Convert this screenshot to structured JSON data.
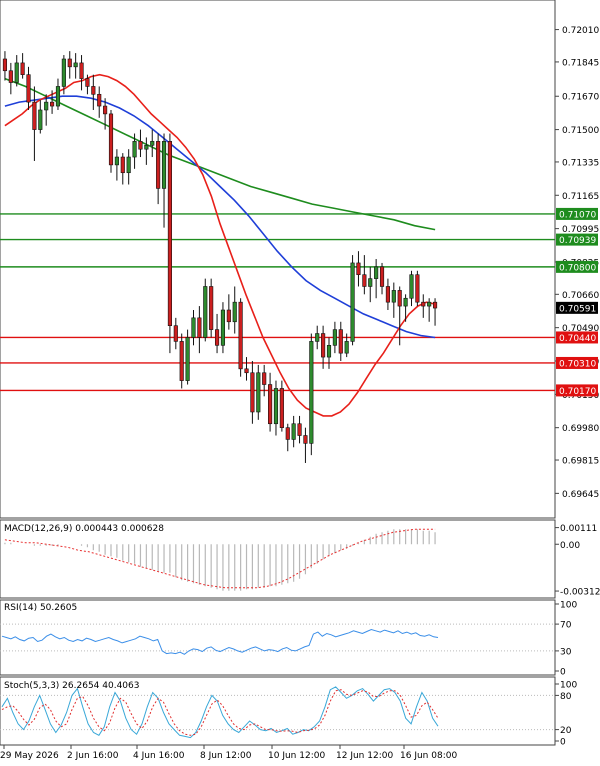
{
  "chart_data": {
    "type": "candlestick",
    "price_panel": {
      "y_ticks": [
        "0.72010",
        "0.71845",
        "0.71670",
        "0.71500",
        "0.71335",
        "0.71165",
        "0.70995",
        "0.70825",
        "0.70660",
        "0.70490",
        "0.70320",
        "0.70150",
        "0.69980",
        "0.69815",
        "0.69645"
      ],
      "range": [
        0.6955,
        0.7212
      ],
      "resistance_levels": [
        0.708,
        0.70939,
        0.7107
      ],
      "support_levels": [
        0.7044,
        0.7031,
        0.7017
      ],
      "resistance_labels": [
        "0.70800",
        "0.70939",
        "0.71070"
      ],
      "support_labels": [
        "0.70440",
        "0.70310",
        "0.70170"
      ],
      "current_price": 0.70591,
      "current_price_label": "0.70591",
      "candles": [
        {
          "o": 0.7186,
          "h": 0.719,
          "l": 0.7175,
          "c": 0.718
        },
        {
          "o": 0.718,
          "h": 0.7184,
          "l": 0.7168,
          "c": 0.7174
        },
        {
          "o": 0.7174,
          "h": 0.7188,
          "l": 0.7172,
          "c": 0.7184
        },
        {
          "o": 0.7184,
          "h": 0.7189,
          "l": 0.7176,
          "c": 0.7178
        },
        {
          "o": 0.7178,
          "h": 0.7182,
          "l": 0.716,
          "c": 0.7164
        },
        {
          "o": 0.7164,
          "h": 0.7172,
          "l": 0.7134,
          "c": 0.715
        },
        {
          "o": 0.715,
          "h": 0.7165,
          "l": 0.7148,
          "c": 0.716
        },
        {
          "o": 0.716,
          "h": 0.7168,
          "l": 0.7152,
          "c": 0.7164
        },
        {
          "o": 0.7164,
          "h": 0.717,
          "l": 0.7158,
          "c": 0.7162
        },
        {
          "o": 0.7162,
          "h": 0.7176,
          "l": 0.716,
          "c": 0.7172
        },
        {
          "o": 0.7172,
          "h": 0.7188,
          "l": 0.7168,
          "c": 0.7186
        },
        {
          "o": 0.7186,
          "h": 0.719,
          "l": 0.7176,
          "c": 0.7182
        },
        {
          "o": 0.7182,
          "h": 0.7189,
          "l": 0.7176,
          "c": 0.7184
        },
        {
          "o": 0.7184,
          "h": 0.7188,
          "l": 0.717,
          "c": 0.7176
        },
        {
          "o": 0.7176,
          "h": 0.7178,
          "l": 0.7168,
          "c": 0.7172
        },
        {
          "o": 0.7172,
          "h": 0.7178,
          "l": 0.716,
          "c": 0.7168
        },
        {
          "o": 0.7168,
          "h": 0.7172,
          "l": 0.7156,
          "c": 0.7162
        },
        {
          "o": 0.7162,
          "h": 0.7166,
          "l": 0.715,
          "c": 0.7158
        },
        {
          "o": 0.7158,
          "h": 0.716,
          "l": 0.7128,
          "c": 0.7132
        },
        {
          "o": 0.7132,
          "h": 0.714,
          "l": 0.7124,
          "c": 0.7136
        },
        {
          "o": 0.7136,
          "h": 0.7138,
          "l": 0.7122,
          "c": 0.7128
        },
        {
          "o": 0.7128,
          "h": 0.714,
          "l": 0.7122,
          "c": 0.7136
        },
        {
          "o": 0.7136,
          "h": 0.7148,
          "l": 0.713,
          "c": 0.7144
        },
        {
          "o": 0.7144,
          "h": 0.715,
          "l": 0.7136,
          "c": 0.714
        },
        {
          "o": 0.714,
          "h": 0.7146,
          "l": 0.7132,
          "c": 0.7142
        },
        {
          "o": 0.7142,
          "h": 0.715,
          "l": 0.7136,
          "c": 0.7144
        },
        {
          "o": 0.7144,
          "h": 0.7148,
          "l": 0.7112,
          "c": 0.712
        },
        {
          "o": 0.712,
          "h": 0.7148,
          "l": 0.71,
          "c": 0.7144
        },
        {
          "o": 0.7144,
          "h": 0.7148,
          "l": 0.7036,
          "c": 0.705
        },
        {
          "o": 0.705,
          "h": 0.7054,
          "l": 0.7038,
          "c": 0.7042
        },
        {
          "o": 0.7042,
          "h": 0.7046,
          "l": 0.7018,
          "c": 0.7022
        },
        {
          "o": 0.7022,
          "h": 0.7048,
          "l": 0.702,
          "c": 0.7044
        },
        {
          "o": 0.7044,
          "h": 0.7058,
          "l": 0.704,
          "c": 0.7054
        },
        {
          "o": 0.7054,
          "h": 0.706,
          "l": 0.7036,
          "c": 0.7044
        },
        {
          "o": 0.7044,
          "h": 0.7074,
          "l": 0.7042,
          "c": 0.707
        },
        {
          "o": 0.707,
          "h": 0.7074,
          "l": 0.7044,
          "c": 0.7048
        },
        {
          "o": 0.7048,
          "h": 0.7056,
          "l": 0.7036,
          "c": 0.704
        },
        {
          "o": 0.704,
          "h": 0.7062,
          "l": 0.7036,
          "c": 0.7058
        },
        {
          "o": 0.7058,
          "h": 0.7066,
          "l": 0.7048,
          "c": 0.7052
        },
        {
          "o": 0.7052,
          "h": 0.707,
          "l": 0.7046,
          "c": 0.7062
        },
        {
          "o": 0.7062,
          "h": 0.7064,
          "l": 0.7024,
          "c": 0.7028
        },
        {
          "o": 0.7028,
          "h": 0.7034,
          "l": 0.7022,
          "c": 0.7026
        },
        {
          "o": 0.7026,
          "h": 0.7032,
          "l": 0.7,
          "c": 0.7006
        },
        {
          "o": 0.7006,
          "h": 0.703,
          "l": 0.7002,
          "c": 0.7026
        },
        {
          "o": 0.7026,
          "h": 0.703,
          "l": 0.7014,
          "c": 0.702
        },
        {
          "o": 0.702,
          "h": 0.7026,
          "l": 0.6996,
          "c": 0.7
        },
        {
          "o": 0.7,
          "h": 0.7022,
          "l": 0.6994,
          "c": 0.7018
        },
        {
          "o": 0.7018,
          "h": 0.7022,
          "l": 0.6996,
          "c": 0.6998
        },
        {
          "o": 0.6998,
          "h": 0.7,
          "l": 0.6986,
          "c": 0.6992
        },
        {
          "o": 0.6992,
          "h": 0.7004,
          "l": 0.6988,
          "c": 0.7
        },
        {
          "o": 0.7,
          "h": 0.7004,
          "l": 0.699,
          "c": 0.6994
        },
        {
          "o": 0.6994,
          "h": 0.6998,
          "l": 0.698,
          "c": 0.699
        },
        {
          "o": 0.699,
          "h": 0.7046,
          "l": 0.6984,
          "c": 0.7042
        },
        {
          "o": 0.7042,
          "h": 0.705,
          "l": 0.7038,
          "c": 0.7046
        },
        {
          "o": 0.7046,
          "h": 0.705,
          "l": 0.7028,
          "c": 0.7034
        },
        {
          "o": 0.7034,
          "h": 0.7044,
          "l": 0.7028,
          "c": 0.704
        },
        {
          "o": 0.704,
          "h": 0.7052,
          "l": 0.7036,
          "c": 0.7048
        },
        {
          "o": 0.7048,
          "h": 0.7052,
          "l": 0.7032,
          "c": 0.7036
        },
        {
          "o": 0.7036,
          "h": 0.7046,
          "l": 0.7034,
          "c": 0.7042
        },
        {
          "o": 0.7042,
          "h": 0.7086,
          "l": 0.704,
          "c": 0.7082
        },
        {
          "o": 0.7082,
          "h": 0.7088,
          "l": 0.707,
          "c": 0.7076
        },
        {
          "o": 0.7076,
          "h": 0.7086,
          "l": 0.7066,
          "c": 0.707
        },
        {
          "o": 0.707,
          "h": 0.708,
          "l": 0.7062,
          "c": 0.7074
        },
        {
          "o": 0.7074,
          "h": 0.7084,
          "l": 0.7064,
          "c": 0.708
        },
        {
          "o": 0.708,
          "h": 0.7082,
          "l": 0.7066,
          "c": 0.707
        },
        {
          "o": 0.707,
          "h": 0.7074,
          "l": 0.7058,
          "c": 0.7062
        },
        {
          "o": 0.7062,
          "h": 0.7072,
          "l": 0.7054,
          "c": 0.7068
        },
        {
          "o": 0.7068,
          "h": 0.707,
          "l": 0.704,
          "c": 0.706
        },
        {
          "o": 0.706,
          "h": 0.7066,
          "l": 0.7052,
          "c": 0.7064
        },
        {
          "o": 0.7064,
          "h": 0.7078,
          "l": 0.706,
          "c": 0.7076
        },
        {
          "o": 0.7076,
          "h": 0.7078,
          "l": 0.706,
          "c": 0.7062
        },
        {
          "o": 0.7062,
          "h": 0.7066,
          "l": 0.7054,
          "c": 0.706
        },
        {
          "o": 0.706,
          "h": 0.7064,
          "l": 0.7052,
          "c": 0.7062
        },
        {
          "o": 0.7062,
          "h": 0.7064,
          "l": 0.705,
          "c": 0.7059
        }
      ],
      "ma_red": [
        0.7152,
        0.7155,
        0.7158,
        0.7162,
        0.7165,
        0.7167,
        0.7169,
        0.7171,
        0.7174,
        0.7175,
        0.7177,
        0.7178,
        0.7177,
        0.7175,
        0.7172,
        0.7168,
        0.7163,
        0.7158,
        0.7154,
        0.715,
        0.7146,
        0.7141,
        0.7135,
        0.7127,
        0.7116,
        0.7102,
        0.709,
        0.7078,
        0.7066,
        0.7055,
        0.7044,
        0.7035,
        0.7026,
        0.7018,
        0.7012,
        0.7008,
        0.7006,
        0.7004,
        0.7004,
        0.7006,
        0.701,
        0.7016,
        0.7023,
        0.703,
        0.7036,
        0.7043,
        0.705,
        0.7056,
        0.706,
        0.7062,
        0.7061
      ],
      "ma_blue": [
        0.7162,
        0.7164,
        0.7165,
        0.7166,
        0.7167,
        0.7167,
        0.7166,
        0.7164,
        0.7161,
        0.7157,
        0.7152,
        0.7146,
        0.714,
        0.7134,
        0.7128,
        0.7121,
        0.7114,
        0.7106,
        0.7097,
        0.7088,
        0.708,
        0.7073,
        0.7068,
        0.7064,
        0.706,
        0.7056,
        0.7053,
        0.705,
        0.7047,
        0.7045,
        0.7044
      ],
      "ma_green": [
        0.7176,
        0.7172,
        0.7167,
        0.7162,
        0.7157,
        0.7152,
        0.7147,
        0.7142,
        0.7137,
        0.7133,
        0.7129,
        0.7125,
        0.7121,
        0.7118,
        0.7115,
        0.7112,
        0.711,
        0.7108,
        0.7106,
        0.7104,
        0.7101,
        0.7099
      ]
    },
    "macd_panel": {
      "label": "MACD(12,26,9) 0.000443 0.000628",
      "y_ticks": [
        "0.00111",
        "0.00",
        "-0.00312"
      ],
      "range": [
        -0.00345,
        0.00135
      ],
      "histogram": [
        0.0001,
        0.0001,
        0.0,
        0.0,
        0.0,
        -0.0001,
        -0.0001,
        -0.0001,
        -0.0001,
        -0.0001,
        0.0,
        0.0,
        0.0,
        -0.0001,
        -0.0002,
        -0.0004,
        -0.0005,
        -0.0007,
        -0.0008,
        -0.0009,
        -0.0011,
        -0.0012,
        -0.0013,
        -0.0015,
        -0.0016,
        -0.0017,
        -0.0018,
        -0.0019,
        -0.0019,
        -0.0022,
        -0.0024,
        -0.0025,
        -0.0026,
        -0.0027,
        -0.0028,
        -0.0029,
        -0.003,
        -0.0031,
        -0.0031,
        -0.0031,
        -0.0031,
        -0.003,
        -0.003,
        -0.0029,
        -0.0029,
        -0.0028,
        -0.0028,
        -0.0027,
        -0.0026,
        -0.0025,
        -0.0023,
        -0.002,
        -0.0016,
        -0.0013,
        -0.001,
        -0.0008,
        -0.0006,
        -0.0004,
        -0.0003,
        -0.0001,
        0.0001,
        0.0003,
        0.0005,
        0.0007,
        0.0008,
        0.0009,
        0.001,
        0.001,
        0.001,
        0.001,
        0.001,
        0.0009,
        0.0009,
        0.0008
      ],
      "signal": [
        0.0003,
        0.0002,
        0.0001,
        0.0001,
        0.0,
        -0.0001,
        -0.0002,
        -0.0004,
        -0.0005,
        -0.0007,
        -0.0009,
        -0.0011,
        -0.0013,
        -0.0015,
        -0.0017,
        -0.0019,
        -0.0021,
        -0.0023,
        -0.0025,
        -0.0027,
        -0.0028,
        -0.0029,
        -0.0029,
        -0.0029,
        -0.0029,
        -0.0028,
        -0.0026,
        -0.0023,
        -0.0019,
        -0.0015,
        -0.0011,
        -0.0007,
        -0.0004,
        -0.0001,
        0.0002,
        0.0004,
        0.0006,
        0.0008,
        0.0009,
        0.001,
        0.001,
        0.001
      ]
    },
    "rsi_panel": {
      "label": "RSI(14) 50.2605",
      "y_ticks": [
        "100",
        "70",
        "30",
        "0"
      ],
      "range": [
        0,
        100
      ],
      "values": [
        52,
        50,
        48,
        51,
        47,
        45,
        49,
        50,
        44,
        46,
        52,
        55,
        51,
        48,
        50,
        46,
        44,
        47,
        45,
        49,
        47,
        44,
        46,
        48,
        50,
        47,
        45,
        42,
        44,
        46,
        48,
        52,
        50,
        48,
        45,
        47,
        30,
        26,
        27,
        26,
        28,
        25,
        30,
        33,
        32,
        29,
        34,
        36,
        31,
        29,
        32,
        35,
        33,
        30,
        28,
        31,
        34,
        36,
        33,
        30,
        32,
        31,
        29,
        33,
        35,
        31,
        30,
        33,
        36,
        38,
        55,
        58,
        52,
        56,
        54,
        51,
        53,
        55,
        57,
        60,
        58,
        56,
        59,
        62,
        60,
        58,
        61,
        59,
        57,
        60,
        56,
        58,
        55,
        57,
        53,
        52,
        54,
        51,
        50
      ]
    },
    "stoch_panel": {
      "label": "Stoch(5,3,3) 26.2654 40.4063",
      "y_ticks": [
        "100",
        "80",
        "20",
        "0"
      ],
      "range": [
        0,
        100
      ],
      "k": [
        60,
        75,
        50,
        30,
        20,
        35,
        60,
        80,
        55,
        30,
        15,
        28,
        50,
        80,
        92,
        60,
        30,
        15,
        10,
        25,
        60,
        85,
        70,
        40,
        20,
        12,
        30,
        60,
        85,
        75,
        50,
        30,
        20,
        10,
        8,
        6,
        15,
        35,
        60,
        80,
        70,
        45,
        30,
        20,
        15,
        25,
        35,
        28,
        20,
        18,
        22,
        15,
        18,
        22,
        12,
        15,
        20,
        18,
        25,
        35,
        60,
        90,
        95,
        85,
        75,
        80,
        88,
        92,
        82,
        70,
        80,
        90,
        92,
        85,
        70,
        40,
        30,
        60,
        85,
        70,
        40,
        26
      ],
      "d": [
        55,
        60,
        62,
        52,
        38,
        28,
        38,
        58,
        65,
        55,
        35,
        25,
        30,
        55,
        75,
        78,
        62,
        40,
        25,
        18,
        32,
        58,
        75,
        68,
        48,
        30,
        22,
        35,
        60,
        75,
        68,
        48,
        30,
        18,
        12,
        10,
        12,
        25,
        45,
        65,
        72,
        62,
        45,
        30,
        22,
        20,
        28,
        30,
        25,
        20,
        20,
        18,
        17,
        18,
        17,
        15,
        18,
        19,
        21,
        28,
        45,
        70,
        88,
        90,
        82,
        80,
        84,
        88,
        86,
        78,
        78,
        84,
        88,
        88,
        80,
        62,
        42,
        45,
        62,
        68,
        55,
        40
      ]
    },
    "x_labels": [
      "29 May 2026",
      "2 Jun 16:00",
      "4 Jun 16:00",
      "8 Jun 12:00",
      "10 Jun 12:00",
      "12 Jun 12:00",
      "16 Jun 08:00"
    ],
    "colors": {
      "bull": "#1a1a1a",
      "bull_body": "#2e8b2e",
      "bear_body": "#cc1f1f",
      "ma_red": "#e8201a",
      "ma_blue": "#1f3fd8",
      "ma_green": "#1e8c1e",
      "resistance": "#1e8c1e",
      "support": "#e01010",
      "macd_signal": "#e83030",
      "macd_hist": "#b8b8b8",
      "rsi": "#3a8ee8",
      "stoch_k": "#3aa8d8",
      "stoch_d": "#e03030"
    }
  }
}
